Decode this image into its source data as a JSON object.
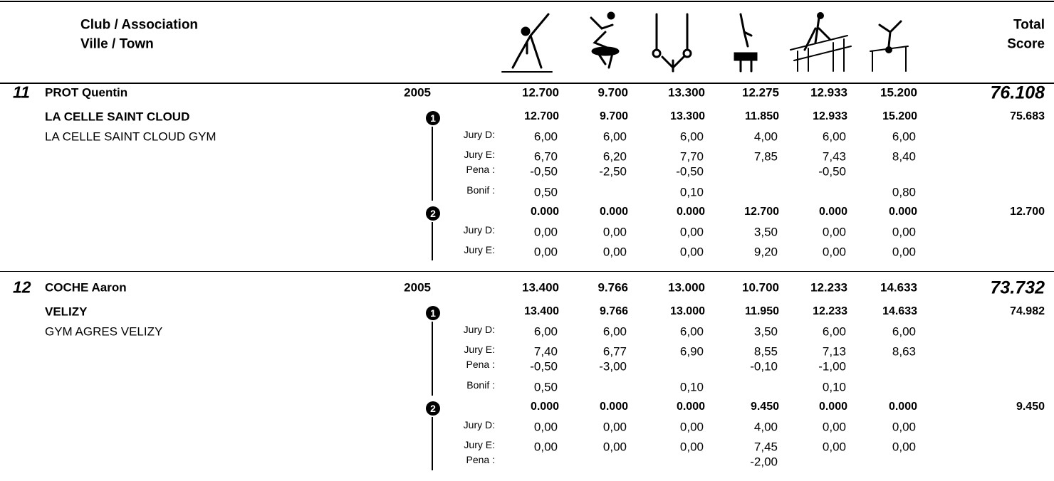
{
  "header": {
    "club": "Club / Association",
    "town": "Ville / Town",
    "total": "Total",
    "score": "Score"
  },
  "athletes": [
    {
      "rank": "11",
      "name": "PROT Quentin",
      "year": "2005",
      "scores": [
        "12.700",
        "9.700",
        "13.300",
        "12.275",
        "12.933",
        "15.200"
      ],
      "total": "76.108",
      "club": "LA CELLE SAINT CLOUD",
      "team": "LA CELLE SAINT CLOUD GYM",
      "passes": [
        {
          "marker": "1",
          "scores": [
            "12.700",
            "9.700",
            "13.300",
            "11.850",
            "12.933",
            "15.200"
          ],
          "total": "75.683",
          "rows": [
            {
              "label": "Jury D:",
              "values": [
                "6,00",
                "6,00",
                "6,00",
                "4,00",
                "6,00",
                "6,00"
              ]
            },
            {
              "label": "Jury E:",
              "values": [
                "6,70",
                "6,20",
                "7,70",
                "7,85",
                "7,43",
                "8,40"
              ]
            },
            {
              "label": "Pena :",
              "values": [
                "-0,50",
                "-2,50",
                "-0,50",
                null,
                "-0,50",
                null
              ]
            },
            {
              "label": "Bonif :",
              "values": [
                "0,50",
                null,
                "0,10",
                null,
                null,
                "0,80"
              ]
            }
          ]
        },
        {
          "marker": "2",
          "scores": [
            "0.000",
            "0.000",
            "0.000",
            "12.700",
            "0.000",
            "0.000"
          ],
          "total": "12.700",
          "rows": [
            {
              "label": "Jury D:",
              "values": [
                "0,00",
                "0,00",
                "0,00",
                "3,50",
                "0,00",
                "0,00"
              ]
            },
            {
              "label": "Jury E:",
              "values": [
                "0,00",
                "0,00",
                "0,00",
                "9,20",
                "0,00",
                "0,00"
              ]
            }
          ]
        }
      ]
    },
    {
      "rank": "12",
      "name": "COCHE Aaron",
      "year": "2005",
      "scores": [
        "13.400",
        "9.766",
        "13.000",
        "10.700",
        "12.233",
        "14.633"
      ],
      "total": "73.732",
      "club": "VELIZY",
      "team": "GYM AGRES VELIZY",
      "passes": [
        {
          "marker": "1",
          "scores": [
            "13.400",
            "9.766",
            "13.000",
            "11.950",
            "12.233",
            "14.633"
          ],
          "total": "74.982",
          "rows": [
            {
              "label": "Jury D:",
              "values": [
                "6,00",
                "6,00",
                "6,00",
                "3,50",
                "6,00",
                "6,00"
              ]
            },
            {
              "label": "Jury E:",
              "values": [
                "7,40",
                "6,77",
                "6,90",
                "8,55",
                "7,13",
                "8,63"
              ]
            },
            {
              "label": "Pena :",
              "values": [
                "-0,50",
                "-3,00",
                null,
                "-0,10",
                "-1,00",
                null
              ]
            },
            {
              "label": "Bonif :",
              "values": [
                "0,50",
                null,
                "0,10",
                null,
                "0,10",
                null
              ]
            }
          ]
        },
        {
          "marker": "2",
          "scores": [
            "0.000",
            "0.000",
            "0.000",
            "9.450",
            "0.000",
            "0.000"
          ],
          "total": "9.450",
          "rows": [
            {
              "label": "Jury D:",
              "values": [
                "0,00",
                "0,00",
                "0,00",
                "4,00",
                "0,00",
                "0,00"
              ]
            },
            {
              "label": "Jury E:",
              "values": [
                "0,00",
                "0,00",
                "0,00",
                "7,45",
                "0,00",
                "0,00"
              ]
            },
            {
              "label": "Pena :",
              "values": [
                null,
                null,
                null,
                "-2,00",
                null,
                null
              ]
            }
          ]
        }
      ]
    }
  ]
}
